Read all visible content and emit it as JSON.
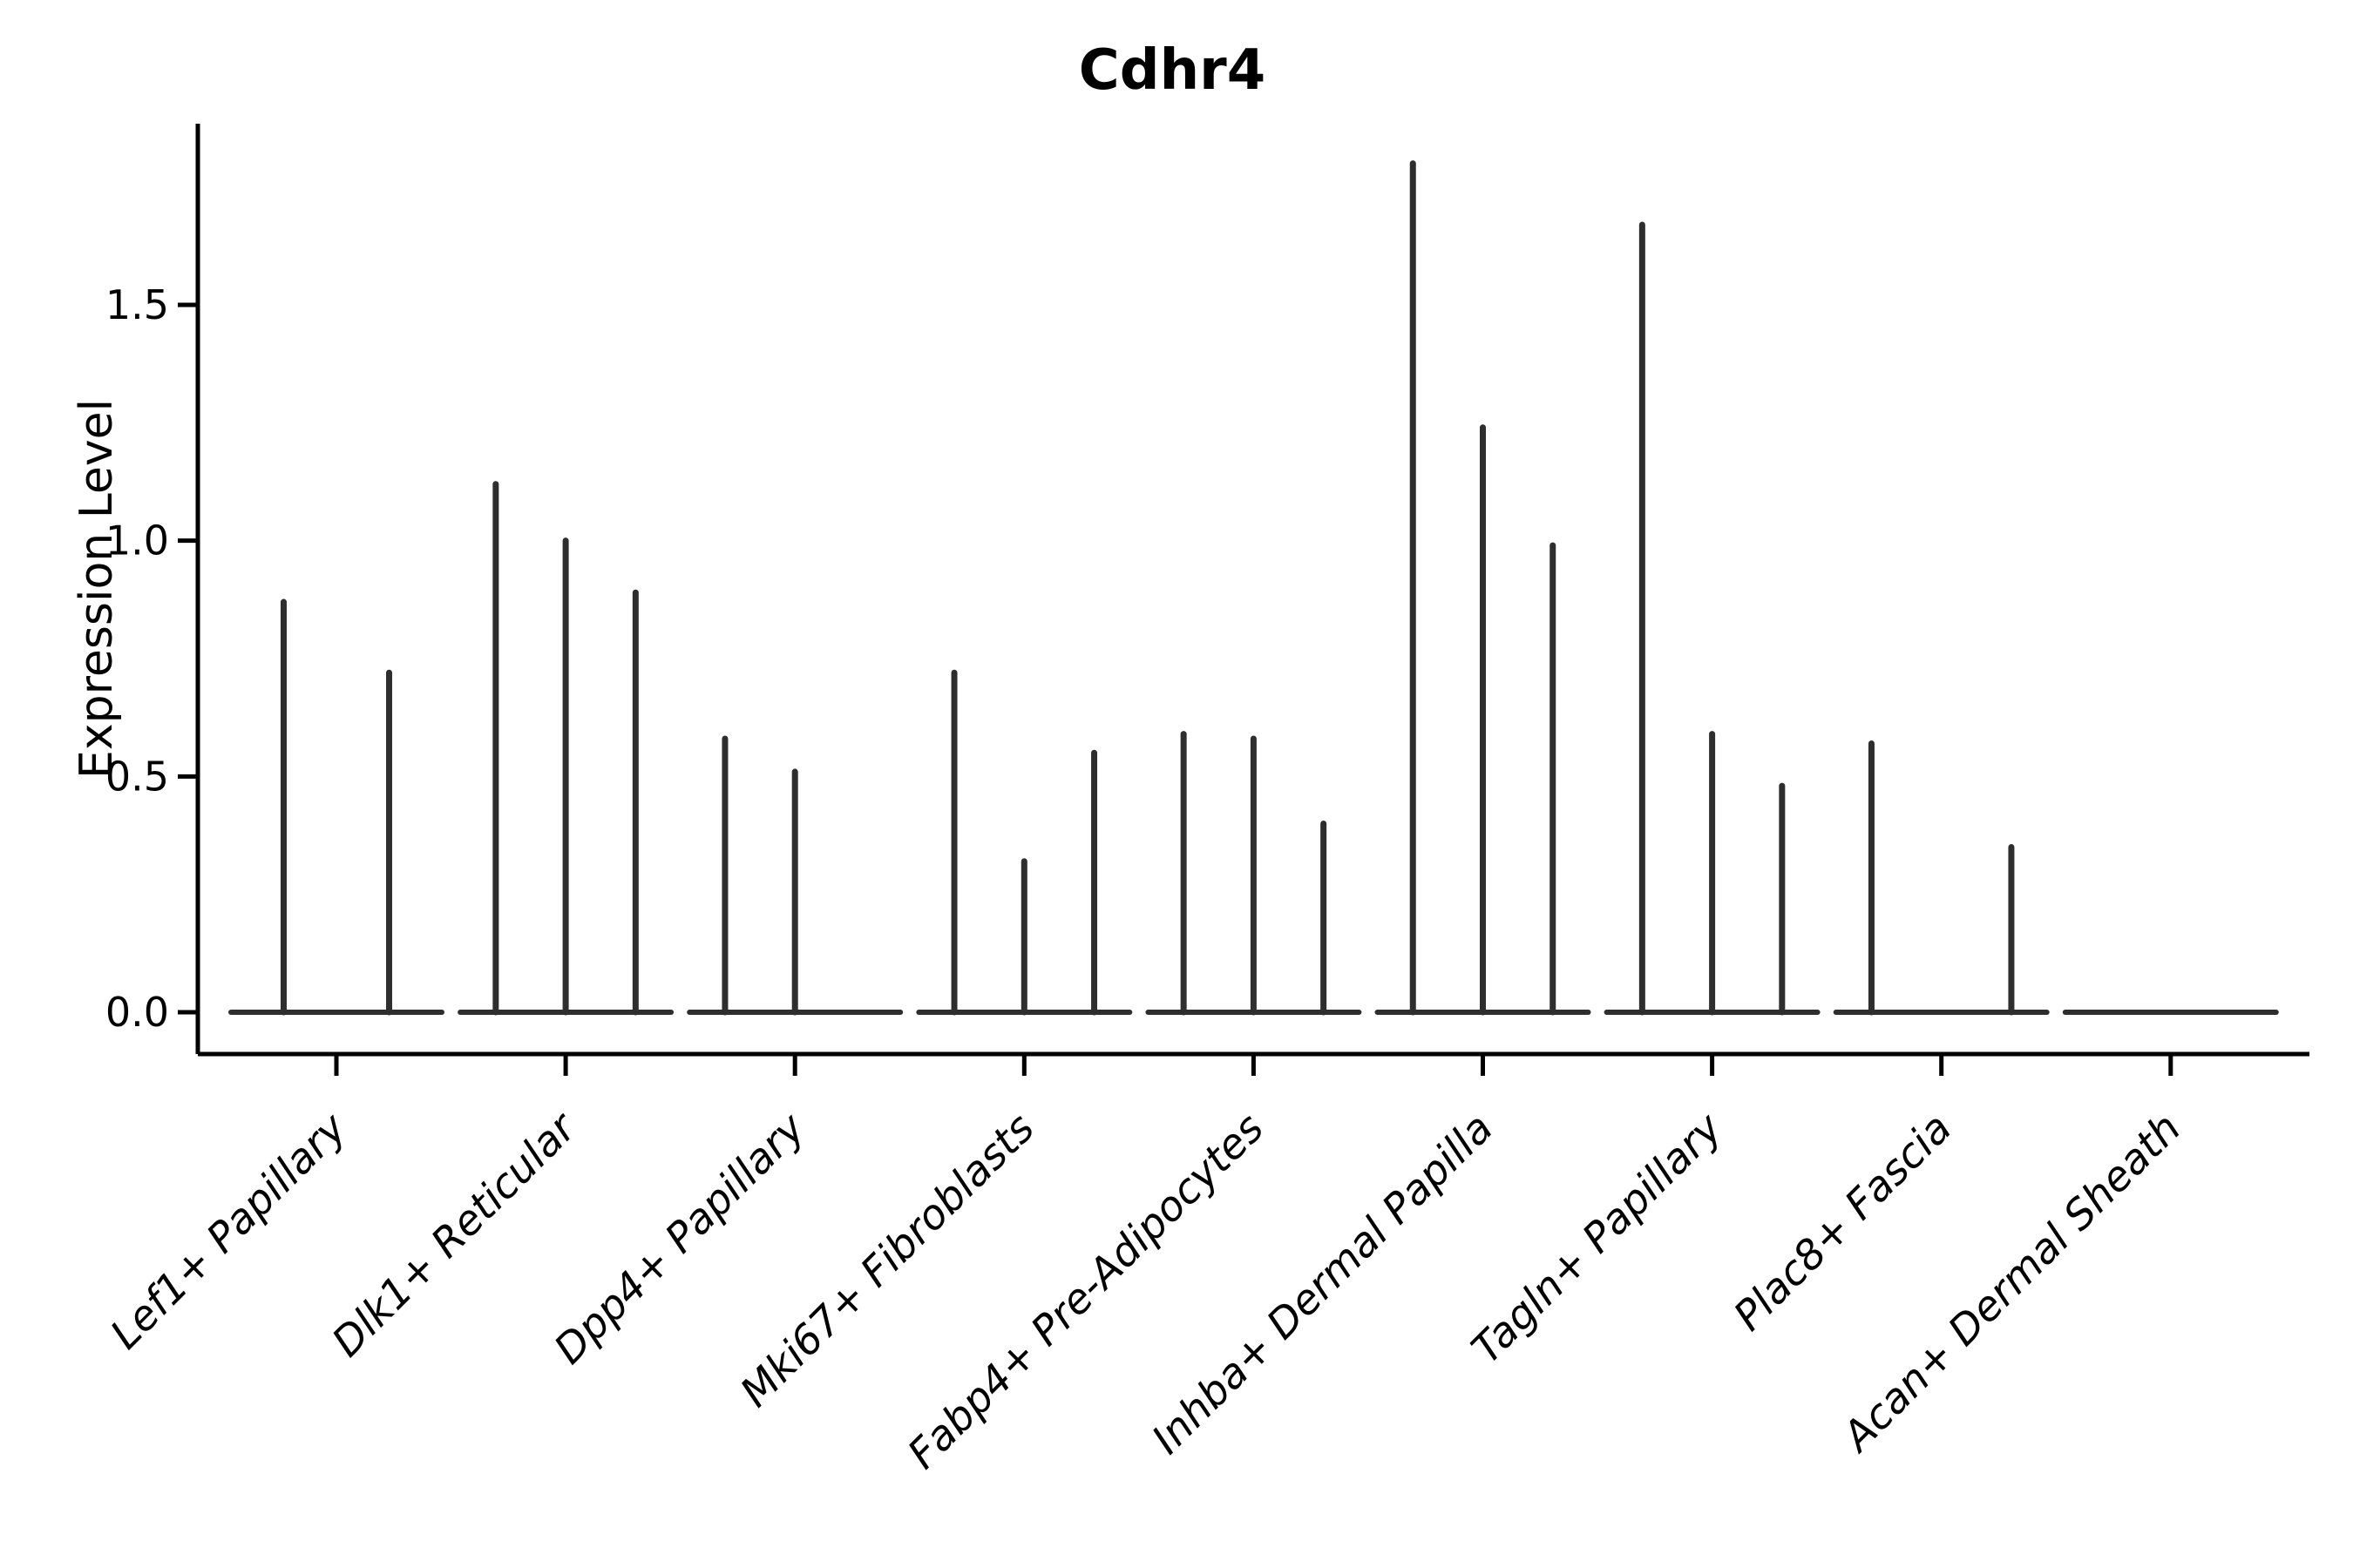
{
  "title": "Cdhr4",
  "y_axis": {
    "label": "Expression Level",
    "tick_labels": [
      "0.0",
      "0.5",
      "1.0",
      "1.5"
    ]
  },
  "chart_data": {
    "type": "violin",
    "title": "Cdhr4",
    "xlabel": "",
    "ylabel": "Expression Level",
    "ylim": [
      0,
      1.88
    ],
    "yticks": [
      0.0,
      0.5,
      1.0,
      1.5
    ],
    "ytick_labels": [
      "0.0",
      "0.5",
      "1.0",
      "1.5"
    ],
    "grid": false,
    "legend": "none",
    "categories": [
      "Lef1+ Papillary",
      "Dlk1+ Reticular",
      "Dpp4+ Papillary",
      "Mki67+ Fibroblasts",
      "Fabp4+ Pre-Adipocytes",
      "Inhba+ Dermal Papilla",
      "Tagln+ Papillary",
      "Plac8+ Fascia",
      "Acan+ Dermal Sheath"
    ],
    "violins": [
      {
        "category": "Lef1+ Papillary",
        "spikes": [
          {
            "dx": -0.23,
            "peak": 0.87
          },
          {
            "dx": 0.23,
            "peak": 0.72
          }
        ]
      },
      {
        "category": "Dlk1+ Reticular",
        "spikes": [
          {
            "dx": -0.305,
            "peak": 1.12
          },
          {
            "dx": 0.0,
            "peak": 1.0
          },
          {
            "dx": 0.305,
            "peak": 0.89
          }
        ]
      },
      {
        "category": "Dpp4+ Papillary",
        "spikes": [
          {
            "dx": -0.305,
            "peak": 0.58
          },
          {
            "dx": 0.0,
            "peak": 0.51
          }
        ]
      },
      {
        "category": "Mki67+ Fibroblasts",
        "spikes": [
          {
            "dx": -0.305,
            "peak": 0.72
          },
          {
            "dx": 0.0,
            "peak": 0.32
          },
          {
            "dx": 0.305,
            "peak": 0.55
          }
        ]
      },
      {
        "category": "Fabp4+ Pre-Adipocytes",
        "spikes": [
          {
            "dx": -0.305,
            "peak": 0.59
          },
          {
            "dx": 0.0,
            "peak": 0.58
          },
          {
            "dx": 0.305,
            "peak": 0.4
          }
        ]
      },
      {
        "category": "Inhba+ Dermal Papilla",
        "spikes": [
          {
            "dx": -0.305,
            "peak": 1.8
          },
          {
            "dx": 0.0,
            "peak": 1.24
          },
          {
            "dx": 0.305,
            "peak": 0.99
          }
        ]
      },
      {
        "category": "Tagln+ Papillary",
        "spikes": [
          {
            "dx": -0.305,
            "peak": 1.67
          },
          {
            "dx": 0.0,
            "peak": 0.59
          },
          {
            "dx": 0.305,
            "peak": 0.48
          }
        ]
      },
      {
        "category": "Plac8+ Fascia",
        "spikes": [
          {
            "dx": -0.305,
            "peak": 0.57
          },
          {
            "dx": 0.305,
            "peak": 0.35
          }
        ]
      },
      {
        "category": "Acan+ Dermal Sheath",
        "spikes": []
      }
    ],
    "colors": {
      "axis": "#000000",
      "violin": "#2e2e2e",
      "background": "#ffffff"
    }
  }
}
